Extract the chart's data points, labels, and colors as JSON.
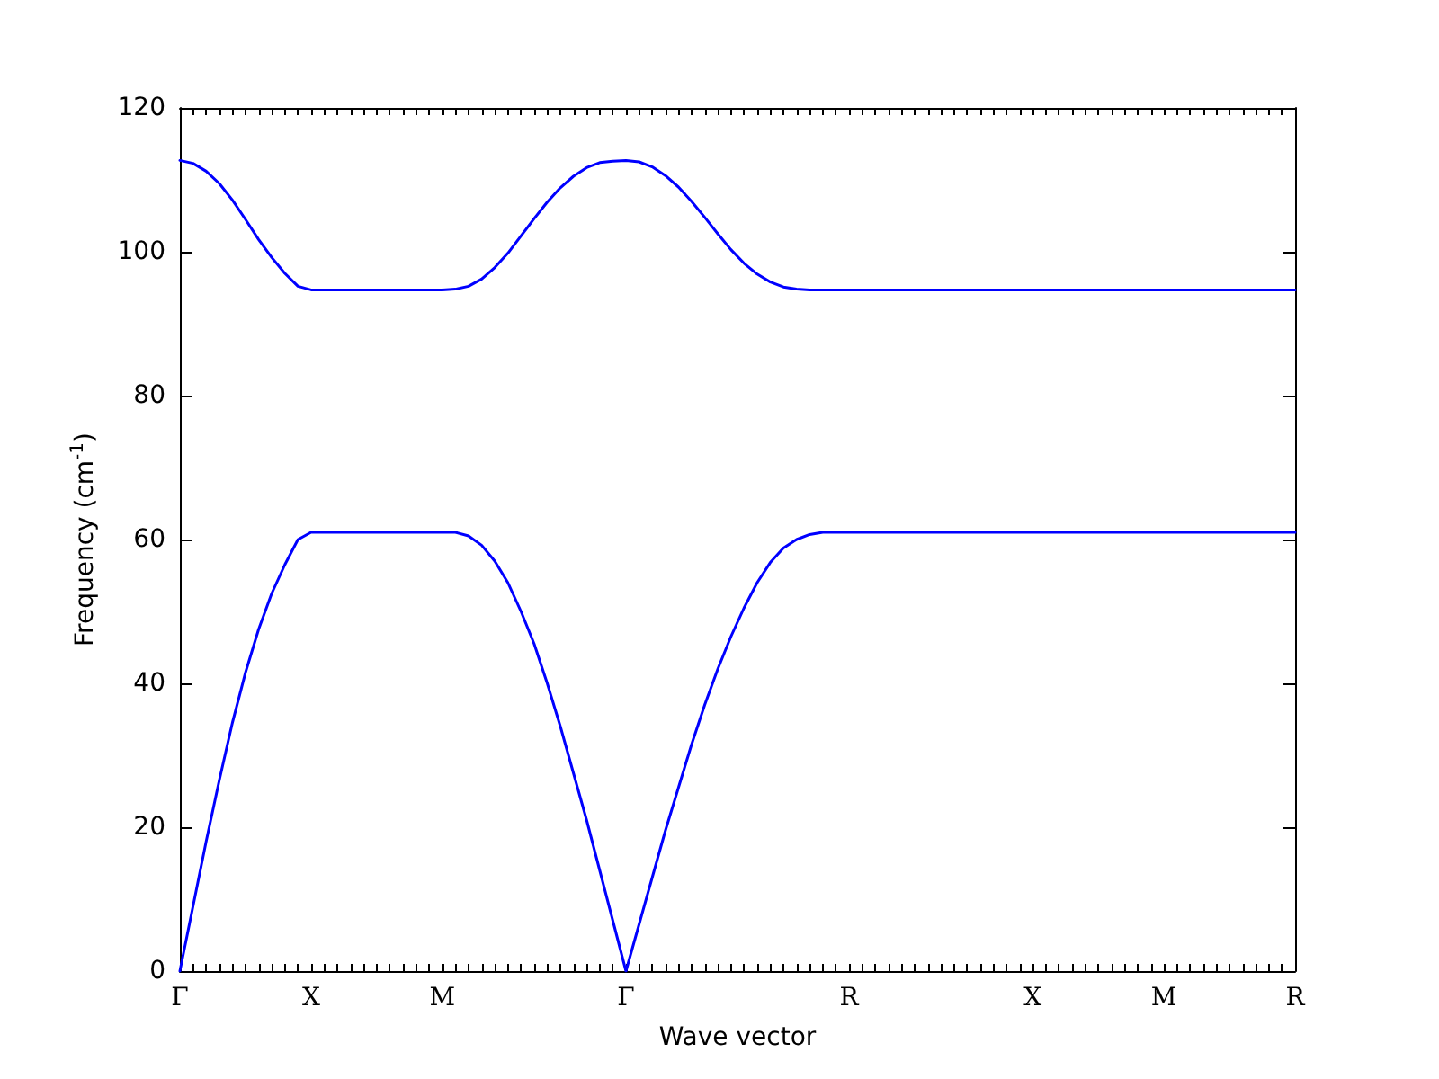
{
  "chart_data": {
    "type": "line",
    "xlabel": "Wave vector",
    "ylabel": "Frequency (cm$^{-1}$)",
    "categories": [
      "Γ",
      null,
      null,
      null,
      null,
      null,
      null,
      null,
      null,
      null,
      "X",
      null,
      null,
      null,
      null,
      null,
      null,
      null,
      null,
      null,
      "M",
      null,
      null,
      null,
      null,
      null,
      null,
      null,
      null,
      null,
      null,
      null,
      null,
      null,
      "Γ",
      null,
      null,
      null,
      null,
      null,
      null,
      null,
      null,
      null,
      null,
      null,
      null,
      null,
      null,
      null,
      null,
      "R",
      null,
      null,
      null,
      null,
      null,
      null,
      null,
      null,
      null,
      null,
      null,
      null,
      null,
      "X",
      null,
      null,
      null,
      null,
      null,
      null,
      null,
      null,
      null,
      "M",
      null,
      null,
      null,
      null,
      null,
      null,
      null,
      null,
      null,
      "R"
    ],
    "ylim": [
      0,
      120
    ],
    "yticks": [
      0,
      20,
      40,
      60,
      80,
      100,
      120
    ],
    "marker": "none",
    "line_style": "solid",
    "series": [
      {
        "color": "#0000ff",
        "values": [
          112.7,
          112.3,
          111.2,
          109.5,
          107.2,
          104.5,
          101.7,
          99.2,
          97.0,
          95.2,
          94.7,
          94.7,
          94.7,
          94.7,
          94.7,
          94.7,
          94.7,
          94.7,
          94.7,
          94.7,
          94.7,
          94.8,
          95.2,
          96.2,
          97.8,
          99.8,
          102.2,
          104.6,
          106.9,
          108.9,
          110.5,
          111.7,
          112.4,
          112.6,
          112.7,
          112.5,
          111.8,
          110.6,
          109.0,
          107.0,
          104.8,
          102.5,
          100.3,
          98.4,
          96.9,
          95.8,
          95.1,
          94.8,
          94.7,
          94.7,
          94.7,
          94.7,
          94.7,
          94.7,
          94.7,
          94.7,
          94.7,
          94.7,
          94.7,
          94.7,
          94.7,
          94.7,
          94.7,
          94.7,
          94.7,
          94.7,
          94.7,
          94.7,
          94.7,
          94.7,
          94.7,
          94.7,
          94.7,
          94.7,
          94.7,
          94.7,
          94.7,
          94.7,
          94.7,
          94.7,
          94.7,
          94.7,
          94.7,
          94.7,
          94.7,
          94.7
        ]
      },
      {
        "color": "#0000ff",
        "values": [
          0,
          9,
          18,
          26.5,
          34.5,
          41.5,
          47.5,
          52.5,
          56.5,
          60,
          61,
          61,
          61,
          61,
          61,
          61,
          61,
          61,
          61,
          61,
          61,
          61,
          60.5,
          59.2,
          57,
          54,
          50,
          45.5,
          40,
          34,
          27.5,
          21,
          14,
          7,
          0,
          6.5,
          13,
          19.5,
          25.5,
          31.5,
          37,
          42,
          46.5,
          50.5,
          54,
          56.8,
          58.8,
          60,
          60.7,
          61,
          61,
          61,
          61,
          61,
          61,
          61,
          61,
          61,
          61,
          61,
          61,
          61,
          61,
          61,
          61,
          61,
          61,
          61,
          61,
          61,
          61,
          61,
          61,
          61,
          61,
          61,
          61,
          61,
          61,
          61,
          61,
          61,
          61,
          61,
          61,
          61
        ]
      }
    ]
  }
}
